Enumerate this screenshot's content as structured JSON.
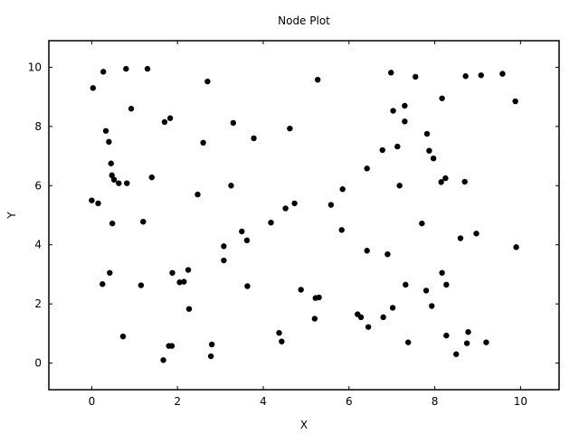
{
  "chart_data": {
    "type": "scatter",
    "title": "Node Plot",
    "xlabel": "X",
    "ylabel": "Y",
    "xlim": [
      -1,
      10.9
    ],
    "ylim": [
      -0.9,
      10.9
    ],
    "x_ticks": [
      "0",
      "2",
      "4",
      "6",
      "8",
      "10"
    ],
    "y_ticks": [
      "0",
      "2",
      "4",
      "6",
      "8",
      "10"
    ],
    "grid": false,
    "marker_color": "#000000",
    "series": [
      {
        "points": [
          [
            0.03,
            9.3
          ],
          [
            0.27,
            9.85
          ],
          [
            0.8,
            9.95
          ],
          [
            1.3,
            9.95
          ],
          [
            0.33,
            7.85
          ],
          [
            0.4,
            7.48
          ],
          [
            0.45,
            6.75
          ],
          [
            0.47,
            6.35
          ],
          [
            0.52,
            6.2
          ],
          [
            0.63,
            6.08
          ],
          [
            0.82,
            6.08
          ],
          [
            0.92,
            8.6
          ],
          [
            1.4,
            6.28
          ],
          [
            0.0,
            5.5
          ],
          [
            0.15,
            5.4
          ],
          [
            0.48,
            4.72
          ],
          [
            1.2,
            4.78
          ],
          [
            0.25,
            2.67
          ],
          [
            0.42,
            3.05
          ],
          [
            1.15,
            2.63
          ],
          [
            0.73,
            0.9
          ],
          [
            1.7,
            8.15
          ],
          [
            1.83,
            8.28
          ],
          [
            2.6,
            7.45
          ],
          [
            2.7,
            9.52
          ],
          [
            3.3,
            8.12
          ],
          [
            3.78,
            7.6
          ],
          [
            2.47,
            5.7
          ],
          [
            3.25,
            6.0
          ],
          [
            1.88,
            3.05
          ],
          [
            2.05,
            2.73
          ],
          [
            2.15,
            2.75
          ],
          [
            2.25,
            3.15
          ],
          [
            2.27,
            1.83
          ],
          [
            1.8,
            0.58
          ],
          [
            1.87,
            0.58
          ],
          [
            1.67,
            0.1
          ],
          [
            2.8,
            0.63
          ],
          [
            2.78,
            0.23
          ],
          [
            3.08,
            3.95
          ],
          [
            3.08,
            3.47
          ],
          [
            3.5,
            4.45
          ],
          [
            3.62,
            4.15
          ],
          [
            3.63,
            2.6
          ],
          [
            4.18,
            4.75
          ],
          [
            4.52,
            5.23
          ],
          [
            4.73,
            5.4
          ],
          [
            4.62,
            7.93
          ],
          [
            5.27,
            9.58
          ],
          [
            4.37,
            1.02
          ],
          [
            4.43,
            0.73
          ],
          [
            4.88,
            2.48
          ],
          [
            5.22,
            2.2
          ],
          [
            5.3,
            2.22
          ],
          [
            5.2,
            1.5
          ],
          [
            5.58,
            5.35
          ],
          [
            5.85,
            5.88
          ],
          [
            5.83,
            4.5
          ],
          [
            6.42,
            6.58
          ],
          [
            6.42,
            3.8
          ],
          [
            6.2,
            1.65
          ],
          [
            6.28,
            1.55
          ],
          [
            6.45,
            1.22
          ],
          [
            6.78,
            7.2
          ],
          [
            6.98,
            9.82
          ],
          [
            7.03,
            8.53
          ],
          [
            7.13,
            7.32
          ],
          [
            7.18,
            6.0
          ],
          [
            7.3,
            8.7
          ],
          [
            7.3,
            8.17
          ],
          [
            6.9,
            3.68
          ],
          [
            7.32,
            2.65
          ],
          [
            6.8,
            1.55
          ],
          [
            7.02,
            1.87
          ],
          [
            7.38,
            0.7
          ],
          [
            7.55,
            9.68
          ],
          [
            7.82,
            7.75
          ],
          [
            7.87,
            7.18
          ],
          [
            7.97,
            6.92
          ],
          [
            8.17,
            8.95
          ],
          [
            8.15,
            6.12
          ],
          [
            8.25,
            6.25
          ],
          [
            8.7,
            6.13
          ],
          [
            7.7,
            4.72
          ],
          [
            8.6,
            4.22
          ],
          [
            8.97,
            4.38
          ],
          [
            8.17,
            3.05
          ],
          [
            8.27,
            2.65
          ],
          [
            7.8,
            2.45
          ],
          [
            7.93,
            1.93
          ],
          [
            8.27,
            0.93
          ],
          [
            8.5,
            0.3
          ],
          [
            8.78,
            1.05
          ],
          [
            8.75,
            0.67
          ],
          [
            9.2,
            0.7
          ],
          [
            8.72,
            9.7
          ],
          [
            9.08,
            9.73
          ],
          [
            9.58,
            9.78
          ],
          [
            9.88,
            8.85
          ],
          [
            9.9,
            3.92
          ]
        ]
      }
    ]
  }
}
